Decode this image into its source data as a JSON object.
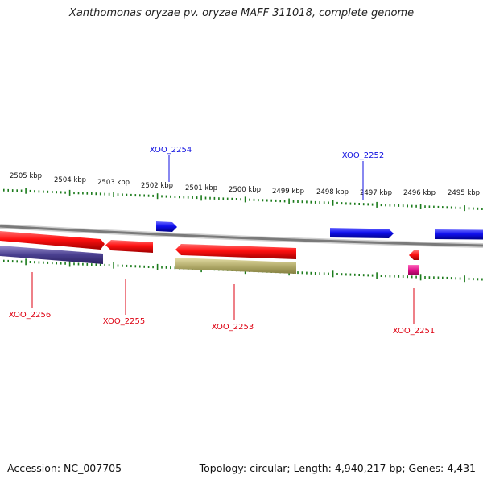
{
  "title": "Xanthomonas oryzae pv. oryzae MAFF 311018, complete genome",
  "footer": {
    "accession": "Accession: NC_007705",
    "topology": "Topology: circular; Length: 4,940,217 bp; Genes: 4,431"
  },
  "scale": {
    "labels": [
      "2505 kbp",
      "2504 kbp",
      "2503 kbp",
      "2502 kbp",
      "2501 kbp",
      "2500 kbp",
      "2499 kbp",
      "2498 kbp",
      "2497 kbp",
      "2496 kbp",
      "2495 kbp"
    ]
  },
  "genes": [
    {
      "id": "XOO_2254",
      "color": "#1010e0",
      "strand": "+"
    },
    {
      "id": "XOO_2252",
      "color": "#1010e0",
      "strand": "+"
    },
    {
      "id": "XOO_2256",
      "color": "#dd0011",
      "strand": "-"
    },
    {
      "id": "XOO_2255",
      "color": "#dd0011",
      "strand": "-"
    },
    {
      "id": "XOO_2253",
      "color": "#dd0011",
      "strand": "-"
    },
    {
      "id": "XOO_2251",
      "color": "#dd0011",
      "strand": "-"
    }
  ],
  "colors": {
    "forward": "#1010e0",
    "reverse": "#dd0011",
    "backbone": "#808080",
    "ticks": "#1a7a1a",
    "purple_feature": "#4a4090",
    "olive_feature": "#b5ae6e",
    "magenta_feature": "#e0108a"
  }
}
